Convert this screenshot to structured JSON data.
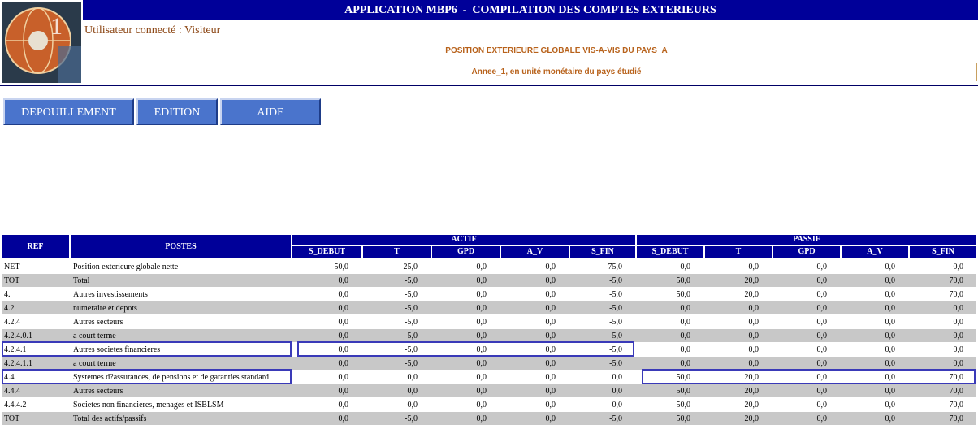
{
  "header": {
    "title": "APPLICATION MBP6  -  COMPILATION DES COMPTES EXTERIEURS",
    "user": "Utilisateur connecté : Visiteur",
    "report_title": "POSITION EXTERIEURE GLOBALE VIS-A-VIS DU PAYS_A",
    "report_subtitle": "Annee_1, en unité monétaire du pays étudié"
  },
  "menu": [
    "DEPOUILLEMENT",
    "EDITION",
    "AIDE"
  ],
  "table": {
    "ref_header": "REF",
    "label_header": "POSTES",
    "groups": [
      {
        "label": "ACTIF",
        "columns": [
          "S_DEBUT",
          "T",
          "GPD",
          "A_V",
          "S_FIN"
        ]
      },
      {
        "label": "PASSIF",
        "columns": [
          "S_DEBUT",
          "T",
          "GPD",
          "A_V",
          "S_FIN"
        ]
      }
    ],
    "rows": [
      {
        "ref": "NET",
        "label": "Position exterieure globale nette",
        "actif": [
          "-50,0",
          "-25,0",
          "0,0",
          "0,0",
          "-75,0"
        ],
        "passif": [
          "0,0",
          "0,0",
          "0,0",
          "0,0",
          "0,0"
        ]
      },
      {
        "ref": "TOT",
        "label": "Total",
        "actif": [
          "0,0",
          "-5,0",
          "0,0",
          "0,0",
          "-5,0"
        ],
        "passif": [
          "50,0",
          "20,0",
          "0,0",
          "0,0",
          "70,0"
        ]
      },
      {
        "ref": "4.",
        "label": "Autres investissements",
        "actif": [
          "0,0",
          "-5,0",
          "0,0",
          "0,0",
          "-5,0"
        ],
        "passif": [
          "50,0",
          "20,0",
          "0,0",
          "0,0",
          "70,0"
        ]
      },
      {
        "ref": "4.2",
        "label": "numeraire et depots",
        "actif": [
          "0,0",
          "-5,0",
          "0,0",
          "0,0",
          "-5,0"
        ],
        "passif": [
          "0,0",
          "0,0",
          "0,0",
          "0,0",
          "0,0"
        ]
      },
      {
        "ref": "4.2.4",
        "label": "Autres secteurs",
        "actif": [
          "0,0",
          "-5,0",
          "0,0",
          "0,0",
          "-5,0"
        ],
        "passif": [
          "0,0",
          "0,0",
          "0,0",
          "0,0",
          "0,0"
        ]
      },
      {
        "ref": "4.2.4.0.1",
        "label": "a court terme",
        "actif": [
          "0,0",
          "-5,0",
          "0,0",
          "0,0",
          "-5,0"
        ],
        "passif": [
          "0,0",
          "0,0",
          "0,0",
          "0,0",
          "0,0"
        ]
      },
      {
        "ref": "4.2.4.1",
        "label": "Autres societes financieres",
        "actif": [
          "0,0",
          "-5,0",
          "0,0",
          "0,0",
          "-5,0"
        ],
        "passif": [
          "0,0",
          "0,0",
          "0,0",
          "0,0",
          "0,0"
        ]
      },
      {
        "ref": "4.2.4.1.1",
        "label": "a court terme",
        "actif": [
          "0,0",
          "-5,0",
          "0,0",
          "0,0",
          "-5,0"
        ],
        "passif": [
          "0,0",
          "0,0",
          "0,0",
          "0,0",
          "0,0"
        ]
      },
      {
        "ref": "4.4",
        "label": "Systemes d?assurances, de pensions et de garanties standard",
        "actif": [
          "0,0",
          "0,0",
          "0,0",
          "0,0",
          "0,0"
        ],
        "passif": [
          "50,0",
          "20,0",
          "0,0",
          "0,0",
          "70,0"
        ]
      },
      {
        "ref": "4.4.4",
        "label": "Autres secteurs",
        "actif": [
          "0,0",
          "0,0",
          "0,0",
          "0,0",
          "0,0"
        ],
        "passif": [
          "50,0",
          "20,0",
          "0,0",
          "0,0",
          "70,0"
        ]
      },
      {
        "ref": "4.4.4.2",
        "label": "Societes non financieres, menages et ISBLSM",
        "actif": [
          "0,0",
          "0,0",
          "0,0",
          "0,0",
          "0,0"
        ],
        "passif": [
          "50,0",
          "20,0",
          "0,0",
          "0,0",
          "70,0"
        ]
      },
      {
        "ref": "TOT",
        "label": "Total des actifs/passifs",
        "actif": [
          "0,0",
          "-5,0",
          "0,0",
          "0,0",
          "-5,0"
        ],
        "passif": [
          "50,0",
          "20,0",
          "0,0",
          "0,0",
          "70,0"
        ]
      }
    ]
  }
}
